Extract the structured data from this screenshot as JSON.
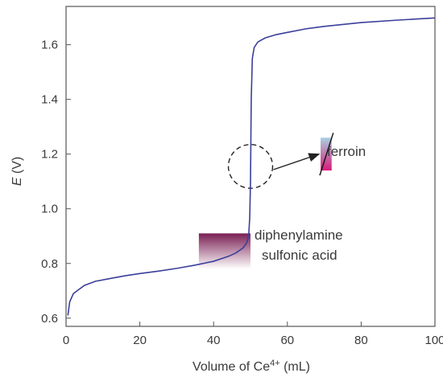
{
  "chart_data": {
    "type": "line",
    "xlabel": "Volume of Ce",
    "xlabel_superscript": "4+",
    "xlabel_unit": " (mL)",
    "ylabel_symbol": "E",
    "ylabel_unit": " (V)",
    "xlim": [
      0,
      100
    ],
    "ylim": [
      0.57,
      1.74
    ],
    "xticks": [
      0,
      20,
      40,
      60,
      80,
      100
    ],
    "xtick_labels": [
      "0",
      "20",
      "40",
      "60",
      "80",
      "100"
    ],
    "yticks": [
      0.6,
      0.8,
      1.0,
      1.2,
      1.4,
      1.6
    ],
    "ytick_labels": [
      "0.6",
      "0.8",
      "1.0",
      "1.2",
      "1.4",
      "1.6"
    ],
    "grid": false,
    "line_color": "#3b3f9a",
    "series": [
      {
        "points": [
          [
            0.5,
            0.61
          ],
          [
            1,
            0.66
          ],
          [
            2,
            0.69
          ],
          [
            3,
            0.7
          ],
          [
            5,
            0.72
          ],
          [
            8,
            0.735
          ],
          [
            12,
            0.745
          ],
          [
            16,
            0.755
          ],
          [
            20,
            0.763
          ],
          [
            25,
            0.772
          ],
          [
            30,
            0.782
          ],
          [
            35,
            0.794
          ],
          [
            40,
            0.808
          ],
          [
            44,
            0.826
          ],
          [
            46,
            0.838
          ],
          [
            48,
            0.857
          ],
          [
            49,
            0.876
          ],
          [
            49.5,
            0.9
          ],
          [
            49.8,
            0.97
          ],
          [
            50,
            1.1
          ],
          [
            50.2,
            1.4
          ],
          [
            50.5,
            1.55
          ],
          [
            51,
            1.59
          ],
          [
            52,
            1.61
          ],
          [
            54,
            1.625
          ],
          [
            57,
            1.637
          ],
          [
            60,
            1.645
          ],
          [
            65,
            1.658
          ],
          [
            70,
            1.667
          ],
          [
            80,
            1.681
          ],
          [
            90,
            1.69
          ],
          [
            100,
            1.698
          ]
        ]
      }
    ],
    "annotations": {
      "ferroin": {
        "label": "ferroin",
        "x": [
          69,
          72
        ],
        "y": [
          1.14,
          1.26
        ],
        "color_top": "#a8d0e0",
        "color_bottom": "#d81b7a",
        "marker_circle_center": [
          50,
          1.155
        ],
        "marker_circle_radius_x": 6,
        "marker_circle_radius_y": 0.08
      },
      "diphenylamine": {
        "label_line1": "diphenylamine",
        "label_line2": "sulfonic acid",
        "x": [
          36,
          50
        ],
        "y": [
          0.78,
          0.91
        ],
        "color_top": "#7a1f54",
        "color_bottom": "#ffffff"
      }
    }
  }
}
